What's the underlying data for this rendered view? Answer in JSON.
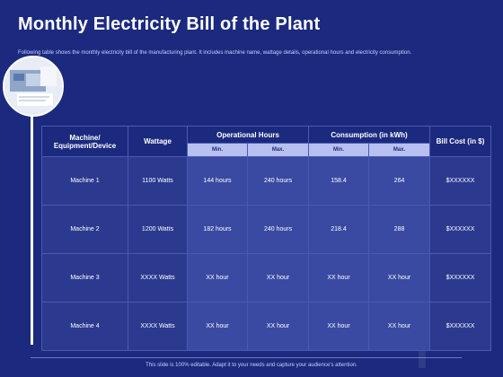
{
  "title": "Monthly Electricity Bill of the Plant",
  "subtitle": "Following table shows the monthly electricity bill of the manufacturing plant. It includes machine name, wattage details, operational hours and electricity consumption.",
  "footer": "This slide is 100% editable. Adapt it to your needs and capture your audience's attention.",
  "table": {
    "headers": {
      "machine": "Machine/ Equipment/Device",
      "wattage": "Wattage",
      "operational_hours": "Operational Hours",
      "consumption": "Consumption (in kWh)",
      "bill_cost": "Bill Cost (in $)",
      "min": "Min.",
      "max": "Max."
    },
    "rows": [
      {
        "machine": "Machine 1",
        "wattage": "1100 Watts",
        "op_min": "144 hours",
        "op_max": "240 hours",
        "c_min": "158.4",
        "c_max": "264",
        "cost": "$XXXXXX"
      },
      {
        "machine": "Machine 2",
        "wattage": "1200 Watts",
        "op_min": "182 hours",
        "op_max": "240 hours",
        "c_min": "218.4",
        "c_max": "288",
        "cost": "$XXXXXX"
      },
      {
        "machine": "Machine 3",
        "wattage": "XXXX Watts",
        "op_min": "XX hour",
        "op_max": "XX hour",
        "c_min": "XX hour",
        "c_max": "XX hour",
        "cost": "$XXXXXX"
      },
      {
        "machine": "Machine 4",
        "wattage": "XXXX Watts",
        "op_min": "XX hour",
        "op_max": "XX hour",
        "c_min": "XX hour",
        "c_max": "XX hour",
        "cost": "$XXXXXX"
      }
    ]
  }
}
